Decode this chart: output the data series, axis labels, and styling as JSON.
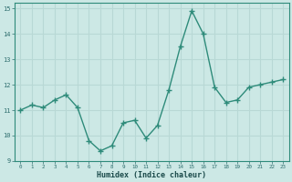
{
  "x": [
    0,
    1,
    2,
    3,
    4,
    5,
    6,
    7,
    8,
    9,
    10,
    11,
    12,
    13,
    14,
    15,
    16,
    17,
    18,
    19,
    20,
    21,
    22,
    23
  ],
  "y": [
    11.0,
    11.2,
    11.1,
    11.4,
    11.6,
    11.1,
    9.8,
    9.4,
    9.6,
    10.5,
    10.6,
    9.9,
    10.4,
    11.8,
    13.5,
    14.9,
    14.0,
    11.9,
    11.3,
    11.4,
    11.9,
    12.0,
    12.1,
    12.2
  ],
  "xlabel": "Humidex (Indice chaleur)",
  "xlim": [
    -0.5,
    23.5
  ],
  "ylim": [
    9.0,
    15.2
  ],
  "yticks": [
    9,
    10,
    11,
    12,
    13,
    14,
    15
  ],
  "xticks": [
    0,
    1,
    2,
    3,
    4,
    5,
    6,
    7,
    8,
    9,
    10,
    11,
    12,
    13,
    14,
    15,
    16,
    17,
    18,
    19,
    20,
    21,
    22,
    23
  ],
  "line_color": "#2e8b7a",
  "marker": "+",
  "marker_size": 4,
  "bg_color": "#cce8e5",
  "grid_color": "#b8d8d5",
  "spine_color": "#2e8b7a",
  "tick_color": "#2e6e6e",
  "label_color": "#1a4a4a",
  "line_width": 1.0
}
